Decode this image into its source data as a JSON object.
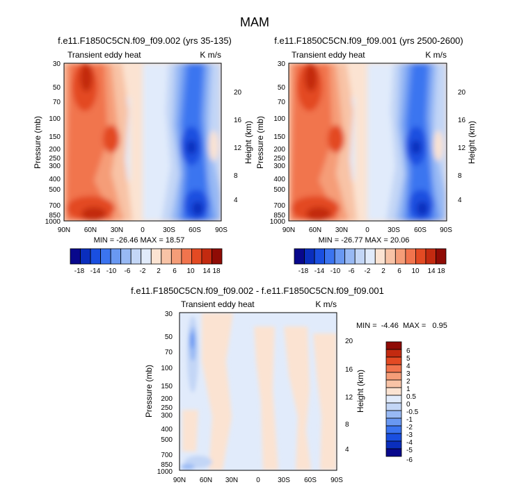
{
  "figure_title": "MAM",
  "chart_data": [
    {
      "type": "heatmap",
      "title": "f.e11.F1850C5CN.f09_f09.002 (yrs 35-135)",
      "left_label": "Transient eddy heat",
      "right_label": "K m/s",
      "ylabel": "Pressure (mb)",
      "ylabel_right": "Height (km)",
      "x_ticks": [
        "90N",
        "60N",
        "30N",
        "0",
        "30S",
        "60S",
        "90S"
      ],
      "y_ticks": [
        "30",
        "50",
        "70",
        "100",
        "150",
        "200",
        "250",
        "300",
        "400",
        "500",
        "700",
        "850",
        "1000"
      ],
      "height_ticks": [
        "4",
        "8",
        "12",
        "16",
        "20"
      ],
      "stats": "MIN = -26.46  MAX = 18.57",
      "colorbar_labels": [
        "-18",
        "-14",
        "-10",
        "-6",
        "-2",
        "2",
        "6",
        "10",
        "14",
        "18"
      ]
    },
    {
      "type": "heatmap",
      "title": "f.e11.F1850C5CN.f09_f09.001 (yrs 2500-2600)",
      "left_label": "Transient eddy heat",
      "right_label": "K m/s",
      "ylabel": "Pressure (mb)",
      "ylabel_right": "Height (km)",
      "x_ticks": [
        "90N",
        "60N",
        "30N",
        "0",
        "30S",
        "60S",
        "90S"
      ],
      "y_ticks": [
        "30",
        "50",
        "70",
        "100",
        "150",
        "200",
        "250",
        "300",
        "400",
        "500",
        "700",
        "850",
        "1000"
      ],
      "height_ticks": [
        "4",
        "8",
        "12",
        "16",
        "20"
      ],
      "stats": "MIN = -26.77  MAX = 20.06",
      "colorbar_labels": [
        "-18",
        "-14",
        "-10",
        "-6",
        "-2",
        "2",
        "6",
        "10",
        "14",
        "18"
      ]
    },
    {
      "type": "heatmap",
      "title": "f.e11.F1850C5CN.f09_f09.002 - f.e11.F1850C5CN.f09_f09.001",
      "left_label": "Transient eddy heat",
      "right_label": "K m/s",
      "ylabel": "Pressure (mb)",
      "ylabel_right": "Height (km)",
      "x_ticks": [
        "90N",
        "60N",
        "30N",
        "0",
        "30S",
        "60S",
        "90S"
      ],
      "y_ticks": [
        "30",
        "50",
        "70",
        "100",
        "150",
        "200",
        "250",
        "300",
        "400",
        "500",
        "700",
        "850",
        "1000"
      ],
      "height_ticks": [
        "4",
        "8",
        "12",
        "16",
        "20"
      ],
      "stats": "MIN =  -4.46  MAX =   0.95",
      "colorbar_labels": [
        "6",
        "5",
        "4",
        "3",
        "2",
        "1",
        "0.5",
        "0",
        "-0.5",
        "-1",
        "-2",
        "-3",
        "-4",
        "-5",
        "-6"
      ]
    }
  ],
  "colors": {
    "diverging": [
      "#08088c",
      "#0a2ebd",
      "#1a4fe0",
      "#3b74f0",
      "#6998f2",
      "#98b9f4",
      "#c3d6f6",
      "#e1ebfb",
      "#fbe3d2",
      "#f8c3a6",
      "#f59d78",
      "#f1744d",
      "#e34a23",
      "#c32a10",
      "#8f0b05"
    ]
  }
}
